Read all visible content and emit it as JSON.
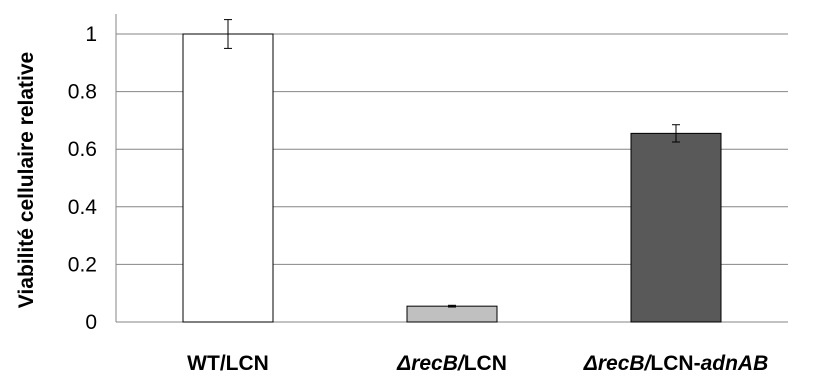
{
  "chart_data": {
    "type": "bar",
    "title": "",
    "xlabel": "",
    "ylabel": "Viabilité cellulaire relative",
    "ylim": [
      0,
      1
    ],
    "grid": true,
    "legend": "none",
    "yticks": [
      {
        "value": 0,
        "label": "0"
      },
      {
        "value": 0.2,
        "label": "0.2"
      },
      {
        "value": 0.4,
        "label": "0.4"
      },
      {
        "value": 0.6,
        "label": "0.6"
      },
      {
        "value": 0.8,
        "label": "0.8"
      },
      {
        "value": 1,
        "label": "1"
      }
    ],
    "categories": [
      {
        "label_parts": [
          {
            "text": "WT/LCN",
            "italic": false
          }
        ]
      },
      {
        "label_parts": [
          {
            "text": "ΔrecB/",
            "italic": true
          },
          {
            "text": "LCN",
            "italic": false
          }
        ]
      },
      {
        "label_parts": [
          {
            "text": "ΔrecB/",
            "italic": true
          },
          {
            "text": "LCN-",
            "italic": false
          },
          {
            "text": "adnAB",
            "italic": true
          }
        ]
      }
    ],
    "values": [
      1.0,
      0.055,
      0.655
    ],
    "errors": [
      0.05,
      0.003,
      0.03
    ],
    "colors": [
      "#ffffff",
      "#c0c0c0",
      "#595959"
    ],
    "gridline_color": "#868686",
    "bar_stroke": "#000000"
  }
}
